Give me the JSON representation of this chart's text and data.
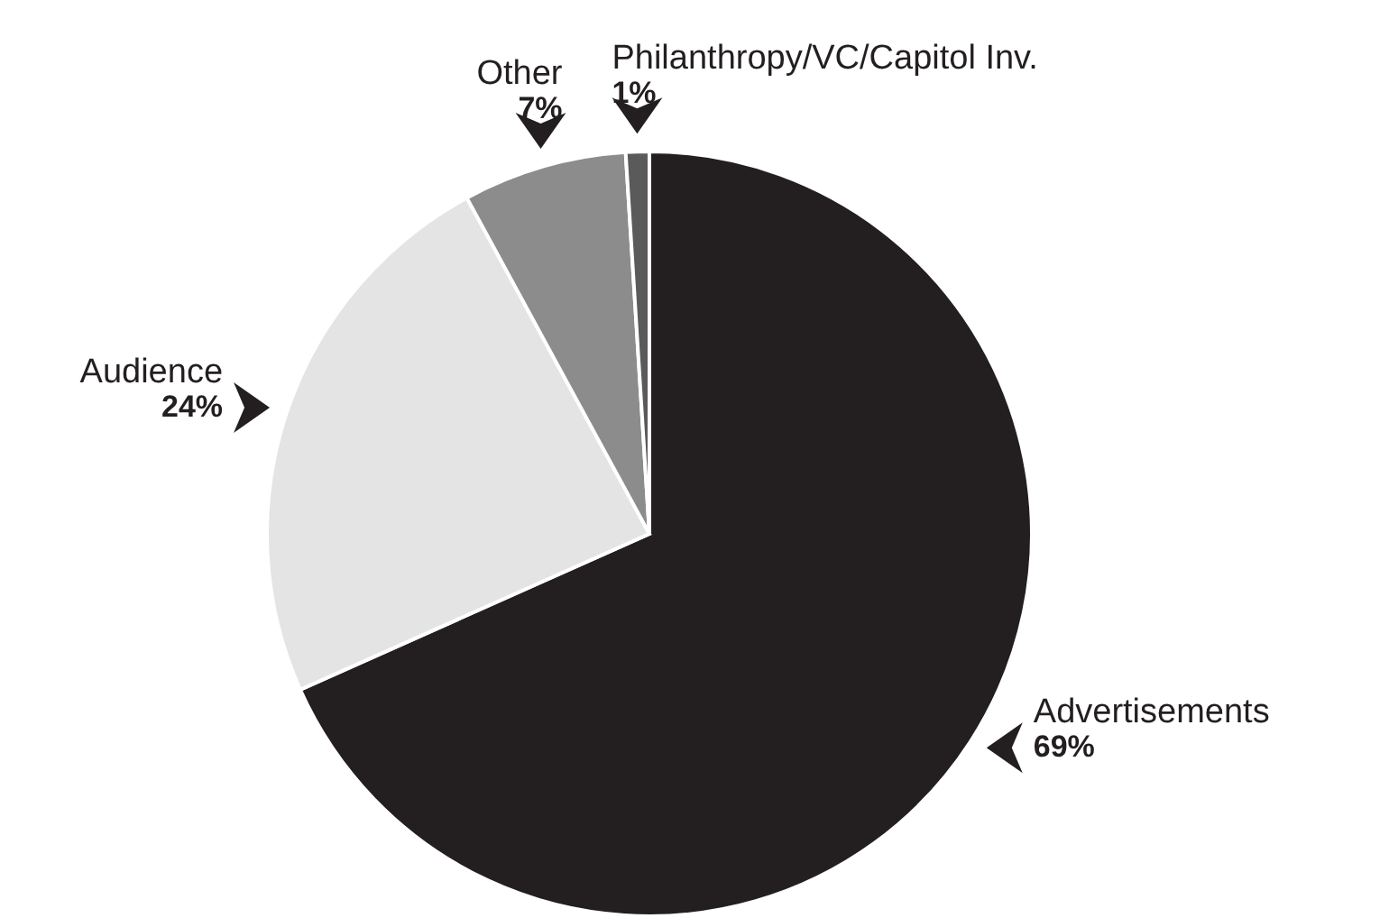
{
  "chart_data": {
    "type": "pie",
    "categories": [
      "Advertisements",
      "Audience",
      "Other",
      "Philanthropy/VC/Capitol Inv."
    ],
    "values": [
      69,
      24,
      7,
      1
    ],
    "colors": [
      "#231f20",
      "#e4e4e4",
      "#8c8c8c",
      "#5a5a5a"
    ],
    "value_labels": [
      "69%",
      "24%",
      "7%",
      "1%"
    ]
  }
}
